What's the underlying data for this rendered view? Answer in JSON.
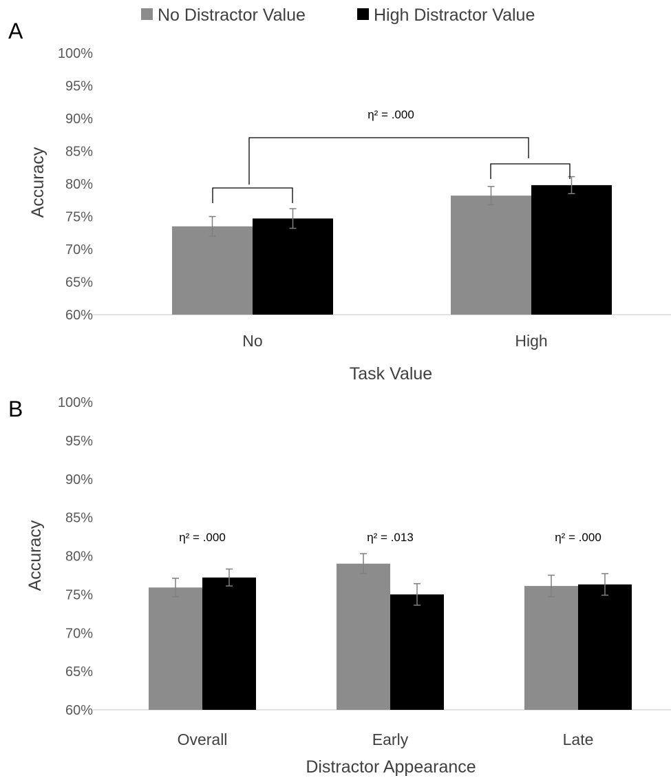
{
  "legend": [
    {
      "label": "No Distractor Value",
      "color": "#8c8c8c"
    },
    {
      "label": "High Distractor Value",
      "color": "#000000"
    }
  ],
  "chart_data": [
    {
      "panel": "A",
      "type": "bar",
      "xlabel": "Task Value",
      "ylabel": "Accuracy",
      "ylim": [
        60,
        100
      ],
      "yticks": [
        "60%",
        "65%",
        "70%",
        "75%",
        "80%",
        "85%",
        "90%",
        "95%",
        "100%"
      ],
      "categories": [
        "No",
        "High"
      ],
      "series": [
        {
          "name": "No Distractor Value",
          "color": "#8c8c8c",
          "values": [
            73.5,
            78.2
          ],
          "errors": [
            1.5,
            1.4
          ]
        },
        {
          "name": "High Distractor Value",
          "color": "#000000",
          "values": [
            74.7,
            79.8
          ],
          "errors": [
            1.5,
            1.3
          ]
        }
      ],
      "annotations": [
        {
          "text": "η² = .000",
          "type": "bracket"
        }
      ],
      "grid": false
    },
    {
      "panel": "B",
      "type": "bar",
      "xlabel": "Distractor Appearance",
      "ylabel": "Accuracy",
      "ylim": [
        60,
        100
      ],
      "yticks": [
        "60%",
        "65%",
        "70%",
        "75%",
        "80%",
        "85%",
        "90%",
        "95%",
        "100%"
      ],
      "categories": [
        "Overall",
        "Early",
        "Late"
      ],
      "series": [
        {
          "name": "No Distractor Value",
          "color": "#8c8c8c",
          "values": [
            75.9,
            79.0,
            76.1
          ],
          "errors": [
            1.2,
            1.3,
            1.4
          ]
        },
        {
          "name": "High Distractor Value",
          "color": "#000000",
          "values": [
            77.2,
            75.0,
            76.3
          ],
          "errors": [
            1.1,
            1.4,
            1.4
          ]
        }
      ],
      "annotations": [
        {
          "text": "η² = .000"
        },
        {
          "text": "η² = .013"
        },
        {
          "text": "η² = .000"
        }
      ],
      "grid": false
    }
  ]
}
